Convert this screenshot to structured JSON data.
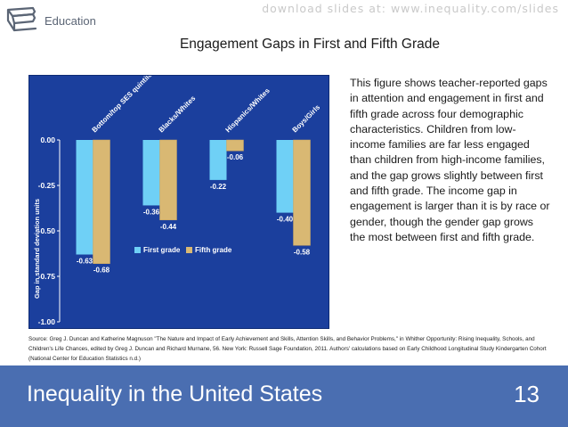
{
  "header": {
    "watermark": "download slides at: www.inequality.com/slides",
    "category": "Education",
    "category_icon": "book-icon"
  },
  "slide_title": "Engagement Gaps in First and Fifth Grade",
  "description": "This figure shows teacher-reported gaps in attention and engagement in first and fifth grade across four demographic characteristics. Children from low-income families are far less engaged than children from high-income families, and the gap grows slightly between first and fifth grade.  The income gap in engagement is larger than it is by race or gender, though the gender gap grows the most between first and fifth grade.",
  "source": "Source: Greg J. Duncan and Katherine Magnuson \"The Nature and Impact of Early Achievement and Skills, Attention Skills, and Behavior Problems,\" in Whither Opportunity: Rising Inequality, Schools, and Children's Life Chances, edited by Greg J. Duncan and Richard Murnane, 56. New York: Russell Sage Foundation, 2011. Authors' calculations based on Early Childhood Longitudinal Study Kindergarten Cohort (National Center for Education Statistics n.d.)",
  "footer": {
    "title": "Inequality in the United States",
    "page_number": "13"
  },
  "colors": {
    "chart_background": "#1b3f9d",
    "first_grade": "#6fd0f6",
    "fifth_grade": "#d9b873",
    "footer_bar": "#4a6eb1"
  },
  "chart_data": {
    "type": "bar",
    "categories": [
      "Bottom/top SES quintile",
      "Blacks/Whites",
      "Hispanics/Whites",
      "Boys/Girls"
    ],
    "series": [
      {
        "name": "First grade",
        "values": [
          -0.63,
          -0.36,
          -0.22,
          -0.4
        ],
        "labels": [
          "-0.63",
          "-0.36",
          "-0.22",
          "-0.40"
        ]
      },
      {
        "name": "Fifth grade",
        "values": [
          -0.68,
          -0.44,
          -0.06,
          -0.58
        ],
        "labels": [
          "-0.68",
          "-0.44",
          "-0.06",
          "-0.58"
        ]
      }
    ],
    "ylabel": "Gap in standard deviation units",
    "ylim": [
      -1.0,
      0.0
    ],
    "yticks": [
      0.0,
      -0.25,
      -0.5,
      -0.75,
      -1.0
    ],
    "ytick_labels": [
      "0.00",
      "-0.25",
      "-0.50",
      "-0.75",
      "-1.00"
    ],
    "grid": false,
    "legend_position": "bottom-left"
  }
}
